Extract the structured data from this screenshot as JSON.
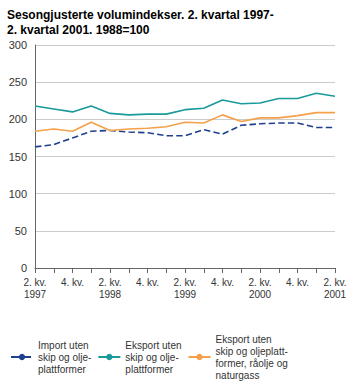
{
  "chart_data": {
    "type": "line",
    "title": "Sesongjusterte volumindekser. 2. kvartal 1997-\n2. kvartal 2001. 1988=100",
    "categories": [
      "2. kv.\n1997",
      null,
      "4. kv.",
      null,
      "2. kv.\n1998",
      null,
      "4. kv.",
      null,
      "2. kv.\n1999",
      null,
      "4. kv.",
      null,
      "2. kv.\n2000",
      null,
      "4. kv.",
      null,
      "2. kv.\n2001"
    ],
    "series": [
      {
        "name": "Import uten\nskip og olje-\nplattformer",
        "color": "#1f3f8f",
        "line_style": "dashed",
        "values": [
          163,
          166,
          175,
          184,
          185,
          183,
          182,
          178,
          178,
          186,
          180,
          192,
          194,
          195,
          195,
          189,
          189
        ]
      },
      {
        "name": "Eksport uten\nskip og olje-\nplattformer",
        "color": "#1a9a9a",
        "line_style": "solid",
        "values": [
          218,
          214,
          210,
          218,
          208,
          206,
          207,
          207,
          213,
          215,
          226,
          221,
          222,
          228,
          228,
          235,
          231
        ]
      },
      {
        "name": "Eksport uten\nskip og oljeplatt-\nformer, råolje og\nnaturgass",
        "color": "#f5a04a",
        "line_style": "solid",
        "values": [
          184,
          187,
          184,
          196,
          185,
          187,
          188,
          190,
          196,
          195,
          206,
          197,
          202,
          202,
          205,
          209,
          209
        ]
      }
    ],
    "ylim": [
      0,
      300
    ],
    "yticks": [
      0,
      50,
      100,
      150,
      200,
      250,
      300
    ],
    "grid": true,
    "legend": "bottom"
  }
}
